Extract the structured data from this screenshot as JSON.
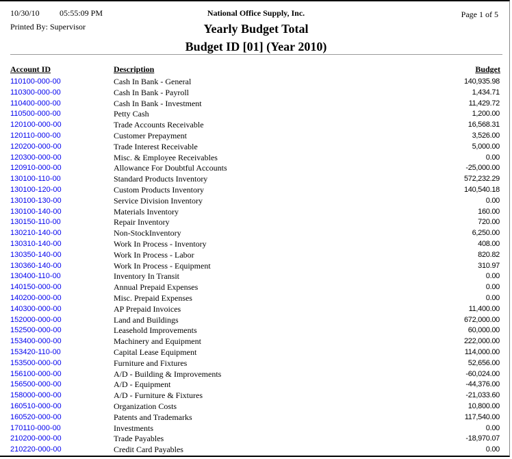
{
  "header": {
    "date": "10/30/10",
    "time": "05:55:09 PM",
    "printed_by": "Printed By: Supervisor",
    "company": "National Office Supply, Inc.",
    "page": "Page 1 of  5",
    "title": "Yearly Budget Total",
    "subtitle": "Budget ID [01] (Year 2010)"
  },
  "columns": {
    "account_id": "Account ID",
    "description": "Description",
    "budget": "Budget"
  },
  "colors": {
    "link": "#0000ee"
  },
  "rows": [
    {
      "id": "110100-000-00",
      "desc": "Cash In Bank - General",
      "budget": "140,935.98"
    },
    {
      "id": "110300-000-00",
      "desc": "Cash In Bank - Payroll",
      "budget": "1,434.71"
    },
    {
      "id": "110400-000-00",
      "desc": "Cash In Bank - Investment",
      "budget": "11,429.72"
    },
    {
      "id": "110500-000-00",
      "desc": "Petty Cash",
      "budget": "1,200.00"
    },
    {
      "id": "120100-000-00",
      "desc": "Trade Accounts Receivable",
      "budget": "16,568.31"
    },
    {
      "id": "120110-000-00",
      "desc": "Customer Prepayment",
      "budget": "3,526.00"
    },
    {
      "id": "120200-000-00",
      "desc": "Trade Interest Receivable",
      "budget": "5,000.00"
    },
    {
      "id": "120300-000-00",
      "desc": "Misc. & Employee Receivables",
      "budget": "0.00"
    },
    {
      "id": "120910-000-00",
      "desc": "Allowance For Doubtful Accounts",
      "budget": "-25,000.00"
    },
    {
      "id": "130100-110-00",
      "desc": "Standard Products Inventory",
      "budget": "572,232.29"
    },
    {
      "id": "130100-120-00",
      "desc": "Custom Products Inventory",
      "budget": "140,540.18"
    },
    {
      "id": "130100-130-00",
      "desc": "Service Division Inventory",
      "budget": "0.00"
    },
    {
      "id": "130100-140-00",
      "desc": "Materials Inventory",
      "budget": "160.00"
    },
    {
      "id": "130150-110-00",
      "desc": "Repair Inventory",
      "budget": "720.00"
    },
    {
      "id": "130210-140-00",
      "desc": "Non-StockInventory",
      "budget": "6,250.00"
    },
    {
      "id": "130310-140-00",
      "desc": "Work In Process - Inventory",
      "budget": "408.00"
    },
    {
      "id": "130350-140-00",
      "desc": "Work In Process - Labor",
      "budget": "820.82"
    },
    {
      "id": "130360-140-00",
      "desc": "Work In Process - Equipment",
      "budget": "310.97"
    },
    {
      "id": "130400-110-00",
      "desc": "Inventory In Transit",
      "budget": "0.00"
    },
    {
      "id": "140150-000-00",
      "desc": "Annual Prepaid Expenses",
      "budget": "0.00"
    },
    {
      "id": "140200-000-00",
      "desc": "Misc. Prepaid Expenses",
      "budget": "0.00"
    },
    {
      "id": "140300-000-00",
      "desc": "AP Prepaid Invoices",
      "budget": "11,400.00"
    },
    {
      "id": "152000-000-00",
      "desc": "Land and Buildings",
      "budget": "672,000.00"
    },
    {
      "id": "152500-000-00",
      "desc": "Leasehold Improvements",
      "budget": "60,000.00"
    },
    {
      "id": "153400-000-00",
      "desc": "Machinery and Equipment",
      "budget": "222,000.00"
    },
    {
      "id": "153420-110-00",
      "desc": "Capital Lease Equipment",
      "budget": "114,000.00"
    },
    {
      "id": "153500-000-00",
      "desc": "Furniture and Fixtures",
      "budget": "52,656.00"
    },
    {
      "id": "156100-000-00",
      "desc": "A/D - Building & Improvements",
      "budget": "-60,024.00"
    },
    {
      "id": "156500-000-00",
      "desc": "A/D - Equipment",
      "budget": "-44,376.00"
    },
    {
      "id": "158000-000-00",
      "desc": "A/D - Furniture & Fixtures",
      "budget": "-21,033.60"
    },
    {
      "id": "160510-000-00",
      "desc": "Organization Costs",
      "budget": "10,800.00"
    },
    {
      "id": "160520-000-00",
      "desc": "Patents and Trademarks",
      "budget": "117,540.00"
    },
    {
      "id": "170110-000-00",
      "desc": "Investments",
      "budget": "0.00"
    },
    {
      "id": "210200-000-00",
      "desc": "Trade Payables",
      "budget": "-18,970.07"
    },
    {
      "id": "210220-000-00",
      "desc": "Credit Card Payables",
      "budget": "0.00"
    }
  ]
}
